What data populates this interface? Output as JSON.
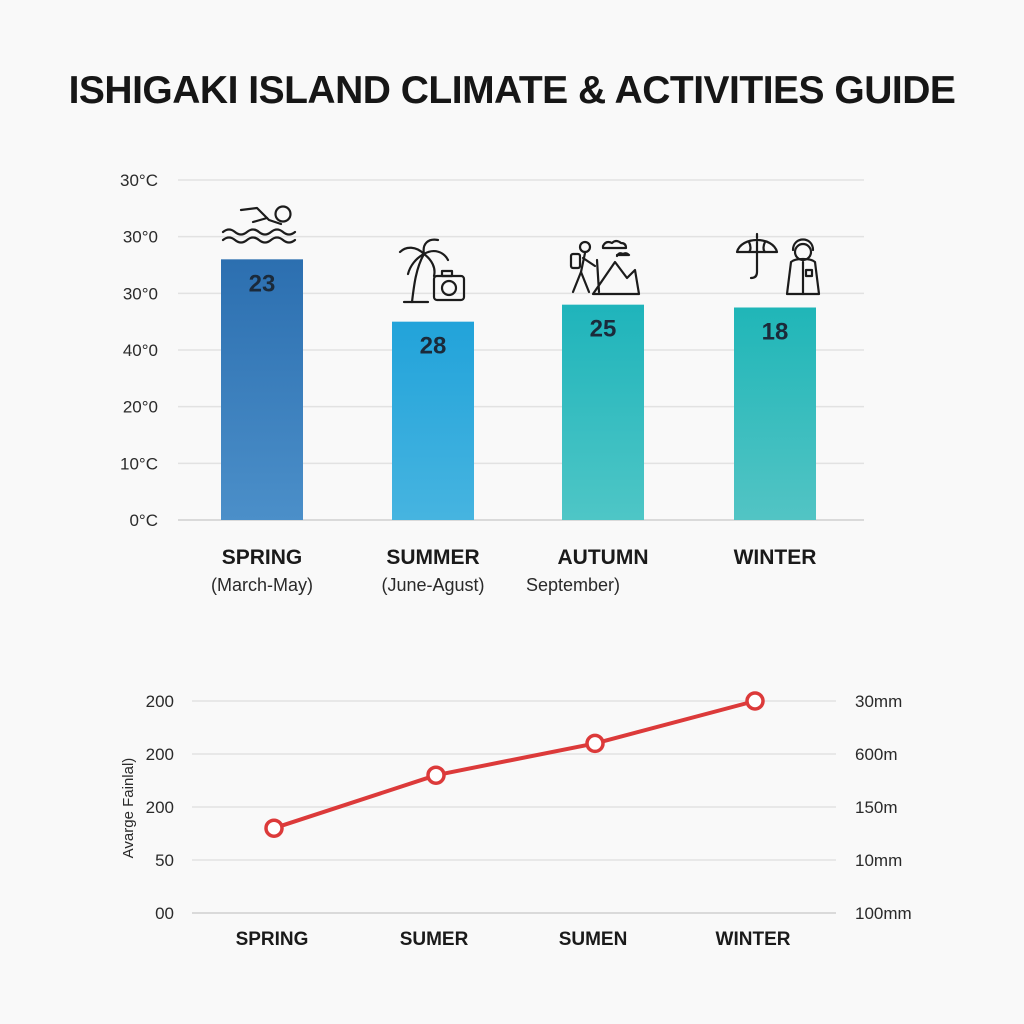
{
  "title": "ISHIGAKI ISLAND CLIMATE & ACTIVITIES GUIDE",
  "colors": {
    "bar_spring_top": "#2c6fb0",
    "bar_spring_bottom": "#4b8fc9",
    "bar_summer_top": "#22a3da",
    "bar_summer_bottom": "#46b4e0",
    "bar_autumn_top": "#1fb4bb",
    "bar_autumn_bottom": "#4ec6c6",
    "bar_winter_top": "#20b6b8",
    "bar_winter_bottom": "#52c4c4",
    "line": "#dc3a3a"
  },
  "chart_data": [
    {
      "type": "bar",
      "title": "",
      "xlabel": "",
      "ylabel": "",
      "y_tick_labels": [
        "0°C",
        "10°C",
        "20°0",
        "40°0",
        "30°0",
        "30°0",
        "30°C"
      ],
      "ylim": [
        0,
        60
      ],
      "grid": true,
      "legend": "none",
      "categories": [
        "SPRING",
        "SUMMER",
        "AUTUMN",
        "WINTER"
      ],
      "category_subtitles": [
        "(March-May)",
        "(June-Agust)",
        "September)",
        ""
      ],
      "values": [
        46,
        35,
        38,
        37.5
      ],
      "value_labels": [
        "23",
        "28",
        "25",
        "18"
      ],
      "icons": [
        "swimmer-icon",
        "palm-camera-icon",
        "hiker-mountain-icon",
        "umbrella-raincoat-icon"
      ]
    },
    {
      "type": "line",
      "title": "",
      "xlabel": "",
      "ylabel": "Avarge Fainlal)",
      "categories": [
        "SPRING",
        "SUMER",
        "SUMEN",
        "WINTER"
      ],
      "values": [
        1.6,
        2.6,
        3.2,
        4.0
      ],
      "ylim": [
        0,
        4
      ],
      "y_tick_labels_left": [
        "00",
        "50",
        "200",
        "200",
        "200"
      ],
      "y_tick_labels_right": [
        "100mm",
        "10mm",
        "150m",
        "600m",
        "30mm"
      ],
      "grid": true,
      "legend": "none"
    }
  ]
}
